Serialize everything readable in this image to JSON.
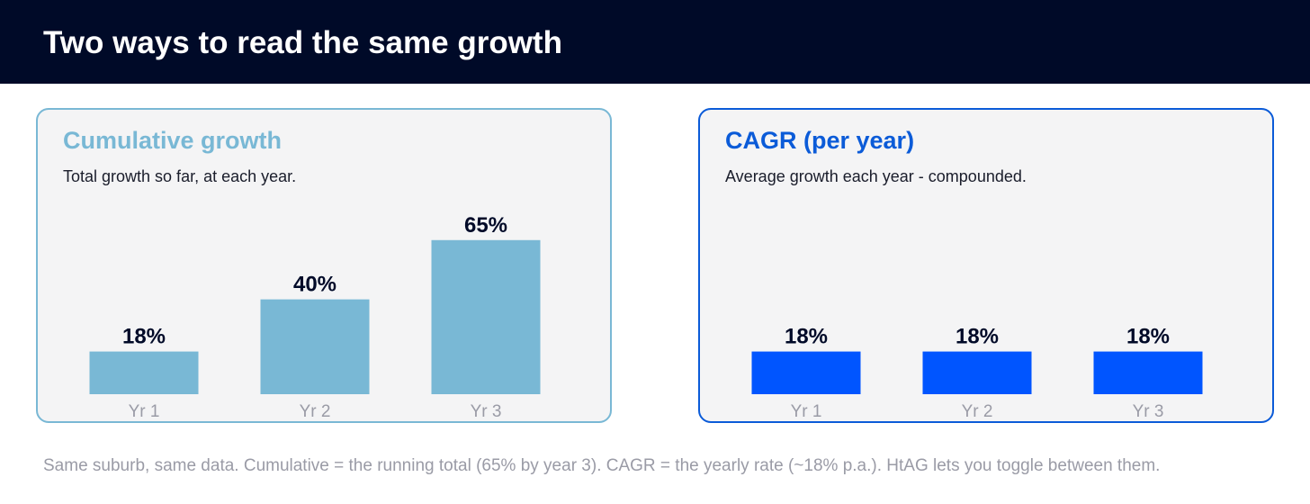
{
  "header": {
    "title": "Two ways to read the same growth"
  },
  "colors": {
    "cumulative": "#79b8d5",
    "cagr": "#0055ff",
    "header_bg": "#000a28"
  },
  "chart_data": [
    {
      "type": "bar",
      "title": "Cumulative growth",
      "subtitle": "Total growth so far, at each year.",
      "categories": [
        "Yr 1",
        "Yr 2",
        "Yr 3"
      ],
      "values": [
        18,
        40,
        65
      ],
      "value_labels": [
        "18%",
        "40%",
        "65%"
      ],
      "ylim": [
        0,
        82
      ],
      "grid": false,
      "color": "#79b8d5"
    },
    {
      "type": "bar",
      "title": "CAGR (per year)",
      "subtitle": "Average growth each year - compounded.",
      "categories": [
        "Yr 1",
        "Yr 2",
        "Yr 3"
      ],
      "values": [
        18,
        18,
        18
      ],
      "value_labels": [
        "18%",
        "18%",
        "18%"
      ],
      "ylim": [
        0,
        82
      ],
      "grid": false,
      "color": "#0055ff"
    }
  ],
  "footnote": "Same suburb, same data. Cumulative = the running total (65% by year 3). CAGR = the yearly rate (~18% p.a.). HtAG lets you toggle between them."
}
